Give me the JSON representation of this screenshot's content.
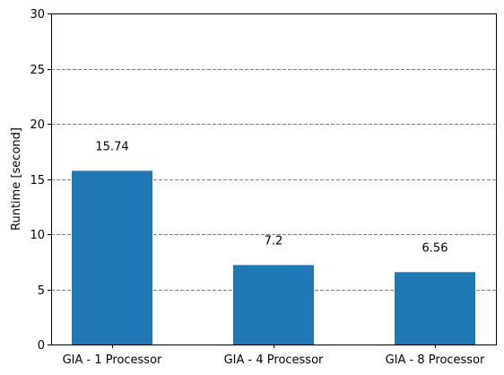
{
  "chart_data": {
    "type": "bar",
    "categories": [
      "GIA - 1 Processor",
      "GIA - 4 Processor",
      "GIA - 8 Processor"
    ],
    "values": [
      15.74,
      7.2,
      6.56
    ],
    "data_labels": [
      "15.74",
      "7.2",
      "6.56"
    ],
    "title": "",
    "xlabel": "",
    "ylabel": "Runtime [second]",
    "ylim": [
      0,
      30
    ],
    "yticks": [
      0,
      5,
      10,
      15,
      20,
      25,
      30
    ],
    "ytick_labels": [
      "0",
      "5",
      "10",
      "15",
      "20",
      "25",
      "30"
    ],
    "grid": "horizontal dashed",
    "bar_color": "#1f77b4",
    "grid_color": "#808080"
  }
}
